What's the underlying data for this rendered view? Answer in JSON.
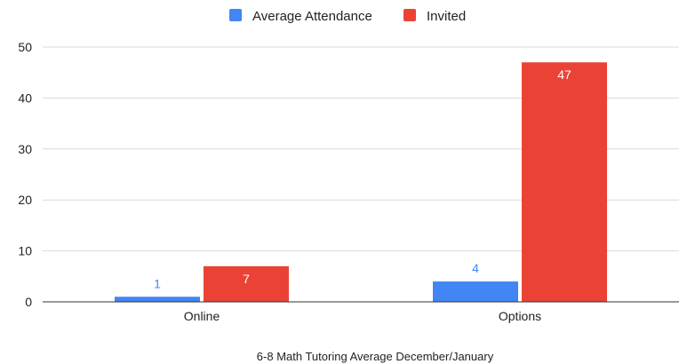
{
  "chart_data": {
    "type": "bar",
    "categories": [
      "Online",
      "Options"
    ],
    "series": [
      {
        "name": "Average Attendance",
        "values": [
          1,
          4
        ],
        "color": "#4285f4",
        "label_color": "#4285f4",
        "labels": [
          "1",
          "4"
        ]
      },
      {
        "name": "Invited",
        "values": [
          7,
          47
        ],
        "color": "#ea4335",
        "label_color": "#ffffff",
        "labels": [
          "7",
          "47"
        ]
      }
    ],
    "xlabel": "6-8 Math Tutoring Average December/January",
    "ylabel": "",
    "ylim": [
      0,
      50
    ],
    "yticks": [
      "0",
      "10",
      "20",
      "30",
      "40",
      "50"
    ],
    "grid": true,
    "legend_position": "top"
  }
}
